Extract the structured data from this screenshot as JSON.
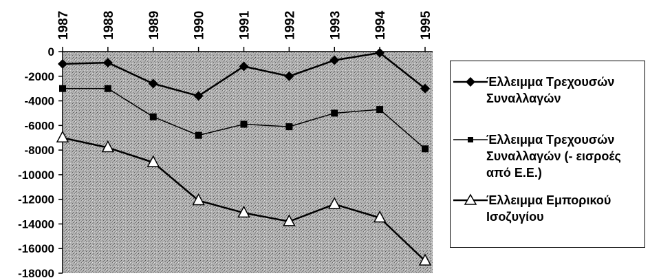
{
  "chart_data": {
    "type": "line",
    "title": "",
    "xlabel": "",
    "ylabel": "",
    "categories": [
      "1987",
      "1988",
      "1989",
      "1990",
      "1991",
      "1992",
      "1993",
      "1994",
      "1995"
    ],
    "ylim": [
      -18000,
      0
    ],
    "yticks": [
      "0",
      "-2000",
      "-4000",
      "-6000",
      "-8000",
      "-10000",
      "-12000",
      "-14000",
      "-16000",
      "-18000"
    ],
    "grid": false,
    "legend_position": "right",
    "plot_background": "stippled-gray",
    "series": [
      {
        "name": "Έλλειμμα Τρεχουσών Συναλλαγών",
        "marker": "diamond",
        "color": "#000000",
        "values": [
          -1000,
          -900,
          -2600,
          -3600,
          -1200,
          -2000,
          -700,
          -100,
          -3000
        ]
      },
      {
        "name": "Έλλειμμα Τρεχουσών Συναλλαγών (- εισροές από Ε.Ε.)",
        "marker": "square",
        "color": "#000000",
        "values": [
          -3000,
          -3000,
          -5300,
          -6800,
          -5900,
          -6100,
          -5000,
          -4700,
          -7900
        ]
      },
      {
        "name": "Έλλειμμα Εμπορικού Ισοζυγίου",
        "marker": "triangle",
        "color": "#000000",
        "values": [
          -7000,
          -7800,
          -9000,
          -12100,
          -13100,
          -13800,
          -12400,
          -13500,
          -17000
        ]
      }
    ]
  },
  "legend": {
    "items": [
      {
        "label": "Έλλειμμα Τρεχουσών\nΣυναλλαγών"
      },
      {
        "label": "Έλλειμμα Τρεχουσών\nΣυναλλαγών (- εισροές\nαπό Ε.Ε.)"
      },
      {
        "label": "Έλλειμμα Εμπορικού\nΙσοζυγίου"
      }
    ]
  }
}
